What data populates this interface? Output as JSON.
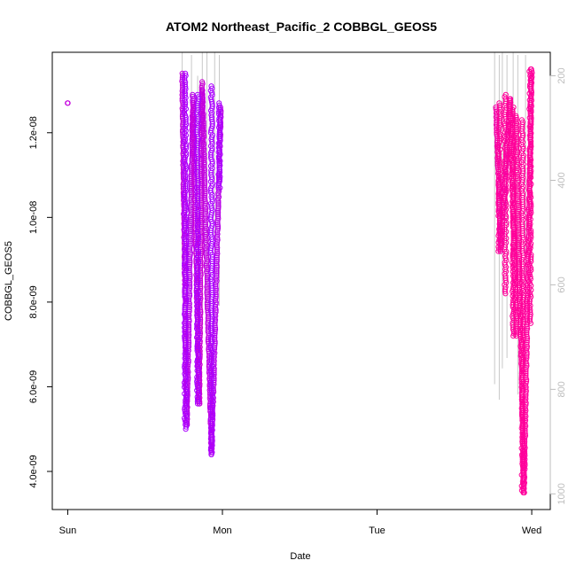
{
  "chart_data": {
    "type": "scatter",
    "title": "ATOM2 Northeast_Pacific_2 COBBGL_GEOS5",
    "xlabel": "Date",
    "ylabel": "COBBGL_GEOS5",
    "x_unit": "day",
    "x_ticks": [
      {
        "x": 0,
        "label": "Sun"
      },
      {
        "x": 1,
        "label": "Mon"
      },
      {
        "x": 2,
        "label": "Tue"
      },
      {
        "x": 3,
        "label": "Wed"
      }
    ],
    "xlim": [
      -0.1,
      3.12
    ],
    "y_ticks": [
      {
        "y": 4e-09,
        "label": "4.0e-09"
      },
      {
        "y": 6e-09,
        "label": "6.0e-09"
      },
      {
        "y": 8e-09,
        "label": "8.0e-09"
      },
      {
        "y": 1e-08,
        "label": "1.0e-08"
      },
      {
        "y": 1.2e-08,
        "label": "1.2e-08"
      }
    ],
    "ylim": [
      3.1e-09,
      1.39e-08
    ],
    "right_axis": {
      "label": "",
      "reversed": true,
      "ticks": [
        200,
        400,
        600,
        800,
        1000
      ],
      "range": [
        155,
        1030
      ],
      "color": "#bdbdbd"
    },
    "grid": false,
    "legend": "none",
    "colors": {
      "marker_low": "#aa00ff",
      "marker_high": "#ff0099",
      "altitude_line": "#c8c8c8"
    },
    "series": [
      {
        "marker": "open-circle",
        "color_encoding": "gradient-magenta",
        "profiles": [
          {
            "t0": 0.0,
            "t1": 0.0,
            "y0": 1.27e-08,
            "y1": 1.27e-08,
            "color": "#c400dd"
          },
          {
            "t0": 0.74,
            "t1": 0.77,
            "y0": 1.34e-08,
            "y1": 5.1e-09,
            "color": "#c400dd"
          },
          {
            "t0": 0.77,
            "t1": 0.81,
            "y0": 5.1e-09,
            "y1": 1.29e-08,
            "color": "#b800e8"
          },
          {
            "t0": 0.81,
            "t1": 0.85,
            "y0": 1.27e-08,
            "y1": 5.6e-09,
            "color": "#c800d8"
          },
          {
            "t0": 0.85,
            "t1": 0.87,
            "y0": 5.6e-09,
            "y1": 1.32e-08,
            "color": "#cc00d4"
          },
          {
            "t0": 0.87,
            "t1": 0.93,
            "y0": 1.3e-08,
            "y1": 4.4e-09,
            "color": "#c000e0"
          },
          {
            "t0": 0.93,
            "t1": 0.99,
            "y0": 4.4e-09,
            "y1": 1.26e-08,
            "color": "#b800e8"
          },
          {
            "t0": 2.77,
            "t1": 2.8,
            "y0": 1.26e-08,
            "y1": 9.2e-09,
            "color": "#f000a8"
          },
          {
            "t0": 2.8,
            "t1": 2.86,
            "y0": 9.2e-09,
            "y1": 1.28e-08,
            "color": "#f000a8"
          },
          {
            "t0": 2.86,
            "t1": 2.9,
            "y0": 1.28e-08,
            "y1": 7.2e-09,
            "color": "#ff0099"
          },
          {
            "t0": 2.9,
            "t1": 2.95,
            "y0": 1.24e-08,
            "y1": 3.5e-09,
            "color": "#ff0099"
          },
          {
            "t0": 2.95,
            "t1": 3.0,
            "y0": 3.5e-09,
            "y1": 1.35e-08,
            "color": "#ff00a0"
          }
        ],
        "clusters": [
          {
            "t": 0.76,
            "y_min": 5e-09,
            "y_max": 1.34e-08
          },
          {
            "t": 0.84,
            "y_min": 5.6e-09,
            "y_max": 1.29e-08
          },
          {
            "t": 0.93,
            "y_min": 4.4e-09,
            "y_max": 1.31e-08
          },
          {
            "t": 0.98,
            "y_min": 1.07e-08,
            "y_max": 1.27e-08
          },
          {
            "t": 2.79,
            "y_min": 9.2e-09,
            "y_max": 1.27e-08
          },
          {
            "t": 2.83,
            "y_min": 8.2e-09,
            "y_max": 1.29e-08
          },
          {
            "t": 2.88,
            "y_min": 7.2e-09,
            "y_max": 1.26e-08
          },
          {
            "t": 2.94,
            "y_min": 3.5e-09,
            "y_max": 1.23e-08
          },
          {
            "t": 2.99,
            "y_min": 7.5e-09,
            "y_max": 1.35e-08
          }
        ]
      }
    ],
    "altitude_lines": [
      {
        "t": 0.74,
        "p_top": 155,
        "p_bot": 560
      },
      {
        "t": 0.8,
        "p_top": 160,
        "p_bot": 500
      },
      {
        "t": 0.84,
        "p_top": 200,
        "p_bot": 760
      },
      {
        "t": 0.87,
        "p_top": 155,
        "p_bot": 700
      },
      {
        "t": 0.9,
        "p_top": 155,
        "p_bot": 650
      },
      {
        "t": 0.95,
        "p_top": 155,
        "p_bot": 600
      },
      {
        "t": 0.98,
        "p_top": 160,
        "p_bot": 640
      },
      {
        "t": 2.76,
        "p_top": 155,
        "p_bot": 790
      },
      {
        "t": 2.79,
        "p_top": 160,
        "p_bot": 820
      },
      {
        "t": 2.81,
        "p_top": 155,
        "p_bot": 760
      },
      {
        "t": 2.84,
        "p_top": 160,
        "p_bot": 740
      },
      {
        "t": 2.88,
        "p_top": 155,
        "p_bot": 700
      },
      {
        "t": 2.91,
        "p_top": 160,
        "p_bot": 810
      },
      {
        "t": 2.96,
        "p_top": 160,
        "p_bot": 760
      }
    ]
  }
}
